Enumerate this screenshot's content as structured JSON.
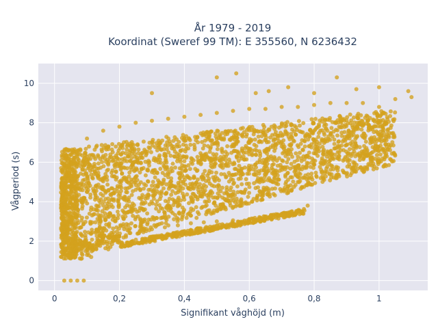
{
  "chart_data": {
    "type": "scatter",
    "title_lines": [
      "År 1979 - 2019",
      "Koordinat (Sweref 99 TM): E 355560, N 6236432"
    ],
    "xlabel": "Signifikant våghöjd (m)",
    "ylabel": "Vågperiod (s)",
    "xlim": [
      -0.05,
      1.15
    ],
    "ylim": [
      -0.5,
      11
    ],
    "x_ticks": [
      0,
      0.2,
      0.4,
      0.6,
      0.8,
      1
    ],
    "x_tick_labels": [
      "0",
      "0,2",
      "0,4",
      "0,6",
      "0,8",
      "1"
    ],
    "y_ticks": [
      0,
      2,
      4,
      6,
      8,
      10
    ],
    "y_tick_labels": [
      "0",
      "2",
      "4",
      "6",
      "8",
      "10"
    ],
    "grid": true,
    "marker_color": "#D4A21E",
    "plot_background": "#E5E5EF",
    "points": [
      [
        0.02,
        1.2
      ],
      [
        0.03,
        1.5
      ],
      [
        0.04,
        2.0
      ],
      [
        0.05,
        2.6
      ],
      [
        0.05,
        3.4
      ],
      [
        0.06,
        4.2
      ],
      [
        0.06,
        5.0
      ],
      [
        0.07,
        5.8
      ],
      [
        0.07,
        6.3
      ],
      [
        0.08,
        6.6
      ],
      [
        0.1,
        1.3
      ],
      [
        0.12,
        1.8
      ],
      [
        0.14,
        2.3
      ],
      [
        0.18,
        2.0
      ],
      [
        0.22,
        2.3
      ],
      [
        0.26,
        2.4
      ],
      [
        0.3,
        2.6
      ],
      [
        0.34,
        2.7
      ],
      [
        0.38,
        2.8
      ],
      [
        0.42,
        2.9
      ],
      [
        0.46,
        2.95
      ],
      [
        0.5,
        3.0
      ],
      [
        0.55,
        3.05
      ],
      [
        0.6,
        3.1
      ],
      [
        0.65,
        3.2
      ],
      [
        0.7,
        3.3
      ],
      [
        0.74,
        3.4
      ],
      [
        0.77,
        3.55
      ],
      [
        0.1,
        7.2
      ],
      [
        0.15,
        7.6
      ],
      [
        0.2,
        7.8
      ],
      [
        0.25,
        8.0
      ],
      [
        0.3,
        8.1
      ],
      [
        0.35,
        8.2
      ],
      [
        0.4,
        8.3
      ],
      [
        0.45,
        8.4
      ],
      [
        0.5,
        8.5
      ],
      [
        0.55,
        8.6
      ],
      [
        0.6,
        8.7
      ],
      [
        0.65,
        8.7
      ],
      [
        0.7,
        8.8
      ],
      [
        0.75,
        8.8
      ],
      [
        0.8,
        8.9
      ],
      [
        0.85,
        9.0
      ],
      [
        0.9,
        9.0
      ],
      [
        0.95,
        9.0
      ],
      [
        1.0,
        8.8
      ],
      [
        1.05,
        9.2
      ],
      [
        1.1,
        9.3
      ],
      [
        0.3,
        9.5
      ],
      [
        0.5,
        10.3
      ],
      [
        0.56,
        10.5
      ],
      [
        0.62,
        9.5
      ],
      [
        0.66,
        9.6
      ],
      [
        0.72,
        9.8
      ],
      [
        0.8,
        9.5
      ],
      [
        0.87,
        10.3
      ],
      [
        0.93,
        9.7
      ],
      [
        1.0,
        9.8
      ],
      [
        1.09,
        9.6
      ],
      [
        0.2,
        5.0
      ],
      [
        0.3,
        5.5
      ],
      [
        0.4,
        5.8
      ],
      [
        0.5,
        6.2
      ],
      [
        0.6,
        6.4
      ],
      [
        0.7,
        6.8
      ],
      [
        0.8,
        7.0
      ],
      [
        0.9,
        7.2
      ],
      [
        1.0,
        8.0
      ],
      [
        0.35,
        4.0
      ],
      [
        0.45,
        4.5
      ],
      [
        0.55,
        4.2
      ],
      [
        0.65,
        4.6
      ],
      [
        0.75,
        5.0
      ],
      [
        0.78,
        3.8
      ],
      [
        0.03,
        0.0
      ],
      [
        0.05,
        0.0
      ],
      [
        0.07,
        0.0
      ],
      [
        0.09,
        0.0
      ]
    ],
    "dense_region": {
      "n_points": 2600,
      "x_range": [
        0.02,
        1.05
      ],
      "period_lower_fn": "1.2 + 4.5*x",
      "period_upper_fn": "6.6 + 2.0*x"
    }
  }
}
